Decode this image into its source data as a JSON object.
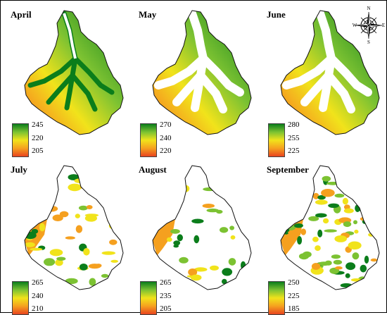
{
  "panels": [
    {
      "month": "April",
      "legend": [
        "245",
        "220",
        "205"
      ],
      "colors": [
        "#0b7d1b",
        "#7cc232",
        "#f1e31b",
        "#f5a01f",
        "#e8441f"
      ],
      "coverage": "full"
    },
    {
      "month": "May",
      "legend": [
        "270",
        "240",
        "220"
      ],
      "colors": [
        "#0b7d1b",
        "#7cc232",
        "#f1e31b",
        "#f5a01f",
        "#e8441f"
      ],
      "coverage": "ridge"
    },
    {
      "month": "June",
      "legend": [
        "280",
        "255",
        "225"
      ],
      "colors": [
        "#0b7d1b",
        "#7cc232",
        "#f1e31b",
        "#f5a01f",
        "#e8441f"
      ],
      "coverage": "ridge"
    },
    {
      "month": "July",
      "legend": [
        "265",
        "240",
        "210"
      ],
      "colors": [
        "#0b7d1b",
        "#7cc232",
        "#f1e31b",
        "#f5a01f",
        "#e8441f"
      ],
      "coverage": "sparse"
    },
    {
      "month": "August",
      "legend": [
        "265",
        "235",
        "205"
      ],
      "colors": [
        "#0b7d1b",
        "#7cc232",
        "#f1e31b",
        "#f5a01f",
        "#e8441f"
      ],
      "coverage": "sparser"
    },
    {
      "month": "September",
      "legend": [
        "250",
        "225",
        "185"
      ],
      "colors": [
        "#0b7d1b",
        "#7cc232",
        "#f1e31b",
        "#f5a01f",
        "#e8441f"
      ],
      "coverage": "patchy"
    }
  ],
  "compass": {
    "n": "N",
    "e": "E",
    "s": "S",
    "w": "W"
  }
}
